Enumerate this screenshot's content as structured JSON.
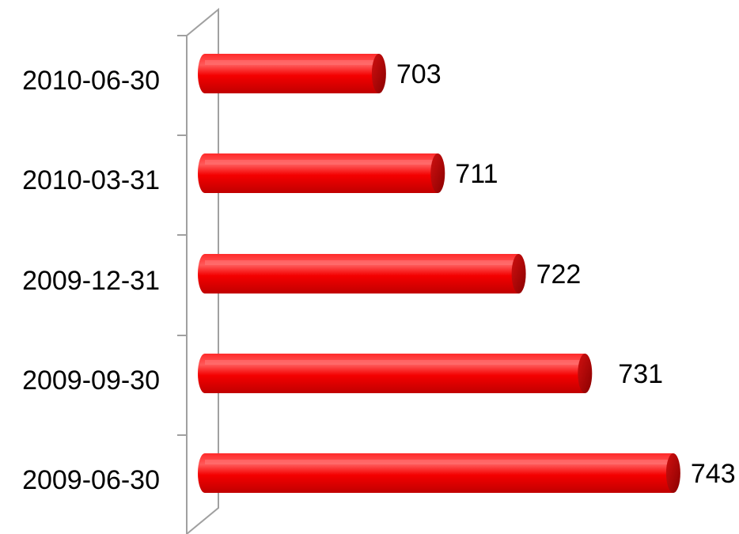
{
  "chart_data": {
    "type": "bar",
    "orientation": "horizontal",
    "style": "3d-cylinder",
    "categories": [
      "2010-06-30",
      "2010-03-31",
      "2009-12-31",
      "2009-09-30",
      "2009-06-30"
    ],
    "values": [
      703,
      711,
      722,
      731,
      743
    ],
    "data_labels": [
      "703",
      "711",
      "722",
      "731",
      "743"
    ],
    "title": "",
    "xlabel": "",
    "ylabel": "",
    "xlim": [
      680,
      745
    ],
    "grid": false,
    "legend": "none",
    "colors": {
      "bar": "#ff0000",
      "bar_highlight": "#ff6060",
      "bar_shadow": "#b00000",
      "bar_end": "#a80000",
      "axis": "#999999"
    }
  }
}
